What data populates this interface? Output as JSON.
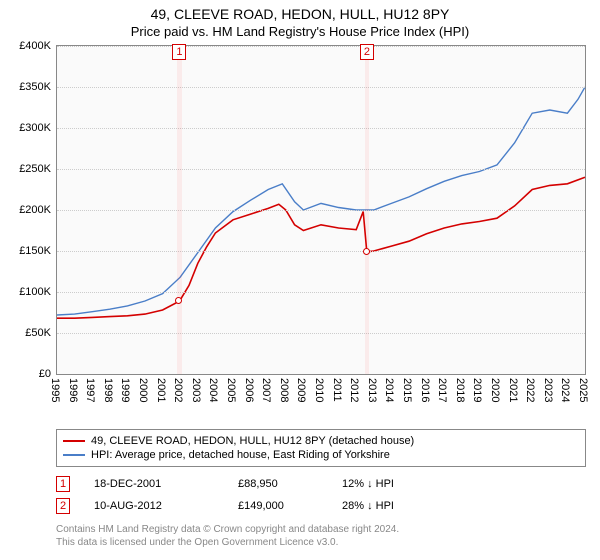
{
  "title": "49, CLEEVE ROAD, HEDON, HULL, HU12 8PY",
  "subtitle": "Price paid vs. HM Land Registry's House Price Index (HPI)",
  "chart": {
    "type": "line",
    "background_color": "#fafafa",
    "grid_color": "#cccccc",
    "border_color": "#888888",
    "ylim": [
      0,
      400000
    ],
    "ytick_step": 50000,
    "y_ticks": [
      "£0",
      "£50K",
      "£100K",
      "£150K",
      "£200K",
      "£250K",
      "£300K",
      "£350K",
      "£400K"
    ],
    "xlim": [
      1995,
      2025
    ],
    "x_ticks": [
      1995,
      1996,
      1997,
      1998,
      1999,
      2000,
      2001,
      2002,
      2003,
      2004,
      2005,
      2006,
      2007,
      2008,
      2009,
      2010,
      2011,
      2012,
      2013,
      2014,
      2015,
      2016,
      2017,
      2018,
      2019,
      2020,
      2021,
      2022,
      2023,
      2024,
      2025
    ],
    "series": [
      {
        "name": "price_paid",
        "label": "49, CLEEVE ROAD, HEDON, HULL, HU12 8PY (detached house)",
        "color": "#d40000",
        "line_width": 1.6,
        "data": [
          [
            1995,
            68000
          ],
          [
            1996,
            68000
          ],
          [
            1997,
            69000
          ],
          [
            1998,
            70000
          ],
          [
            1999,
            71000
          ],
          [
            2000,
            73000
          ],
          [
            2001,
            78000
          ],
          [
            2001.96,
            88950
          ],
          [
            2002.5,
            108000
          ],
          [
            2003,
            135000
          ],
          [
            2003.5,
            155000
          ],
          [
            2004,
            172000
          ],
          [
            2005,
            188000
          ],
          [
            2006,
            195000
          ],
          [
            2007,
            202000
          ],
          [
            2007.6,
            207000
          ],
          [
            2008,
            200000
          ],
          [
            2008.5,
            182000
          ],
          [
            2009,
            175000
          ],
          [
            2010,
            182000
          ],
          [
            2011,
            178000
          ],
          [
            2012,
            176000
          ],
          [
            2012.4,
            198000
          ],
          [
            2012.6,
            149000
          ],
          [
            2013,
            150000
          ],
          [
            2014,
            156000
          ],
          [
            2015,
            162000
          ],
          [
            2016,
            171000
          ],
          [
            2017,
            178000
          ],
          [
            2018,
            183000
          ],
          [
            2019,
            186000
          ],
          [
            2020,
            190000
          ],
          [
            2021,
            205000
          ],
          [
            2022,
            225000
          ],
          [
            2023,
            230000
          ],
          [
            2024,
            232000
          ],
          [
            2025,
            240000
          ]
        ]
      },
      {
        "name": "hpi",
        "label": "HPI: Average price, detached house, East Riding of Yorkshire",
        "color": "#4a7ec8",
        "line_width": 1.4,
        "data": [
          [
            1995,
            72000
          ],
          [
            1996,
            73000
          ],
          [
            1997,
            76000
          ],
          [
            1998,
            79000
          ],
          [
            1999,
            83000
          ],
          [
            2000,
            89000
          ],
          [
            2001,
            98000
          ],
          [
            2002,
            118000
          ],
          [
            2003,
            148000
          ],
          [
            2004,
            178000
          ],
          [
            2005,
            198000
          ],
          [
            2006,
            212000
          ],
          [
            2007,
            225000
          ],
          [
            2007.8,
            232000
          ],
          [
            2008.5,
            210000
          ],
          [
            2009,
            200000
          ],
          [
            2010,
            208000
          ],
          [
            2011,
            203000
          ],
          [
            2012,
            200000
          ],
          [
            2013,
            200000
          ],
          [
            2014,
            208000
          ],
          [
            2015,
            216000
          ],
          [
            2016,
            226000
          ],
          [
            2017,
            235000
          ],
          [
            2018,
            242000
          ],
          [
            2019,
            247000
          ],
          [
            2020,
            255000
          ],
          [
            2021,
            282000
          ],
          [
            2022,
            318000
          ],
          [
            2023,
            322000
          ],
          [
            2024,
            318000
          ],
          [
            2024.6,
            335000
          ],
          [
            2025,
            350000
          ]
        ]
      }
    ],
    "annotation_bands": [
      {
        "index": "1",
        "x": 2001.96,
        "width_years": 0.25
      },
      {
        "index": "2",
        "x": 2012.61,
        "width_years": 0.25
      }
    ],
    "sale_points": [
      {
        "x": 2001.96,
        "y": 88950
      },
      {
        "x": 2012.61,
        "y": 149000
      }
    ]
  },
  "legend": {
    "rows": [
      {
        "color": "#d40000",
        "label_path": "chart.series.0.label"
      },
      {
        "color": "#4a7ec8",
        "label_path": "chart.series.1.label"
      }
    ]
  },
  "annotations": [
    {
      "index": "1",
      "date": "18-DEC-2001",
      "price": "£88,950",
      "pct": "12% ↓ HPI"
    },
    {
      "index": "2",
      "date": "10-AUG-2012",
      "price": "£149,000",
      "pct": "28% ↓ HPI"
    }
  ],
  "footer_line1": "Contains HM Land Registry data © Crown copyright and database right 2024.",
  "footer_line2": "This data is licensed under the Open Government Licence v3.0."
}
